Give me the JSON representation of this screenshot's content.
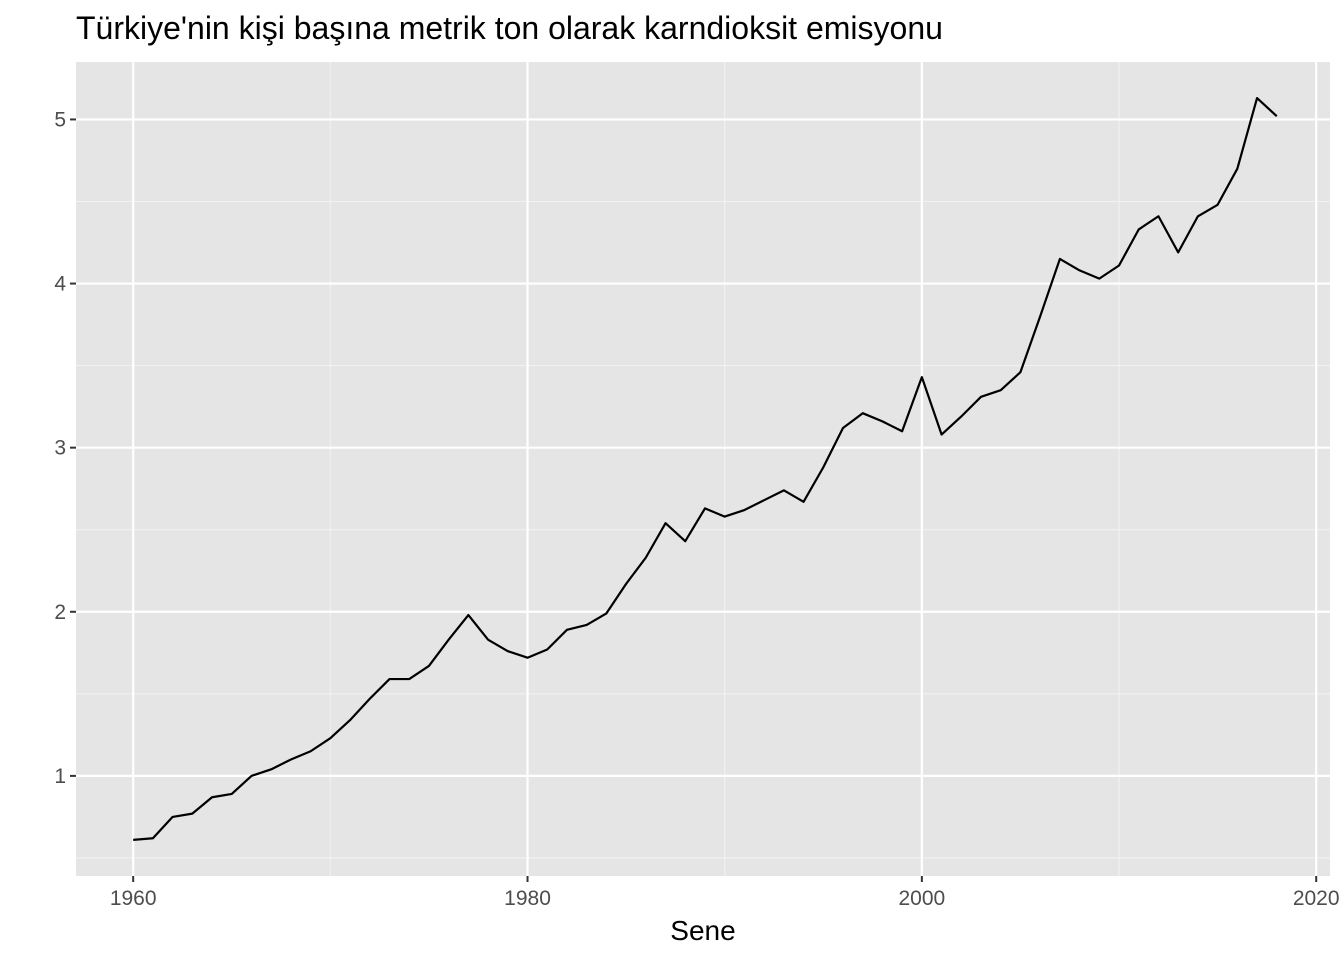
{
  "chart_data": {
    "type": "line",
    "title": "Türkiye'nin kişi başına metrik ton olarak karndioksit emisyonu",
    "xlabel": "Sene",
    "ylabel": "",
    "xlim": [
      1957.1,
      2020.7
    ],
    "ylim": [
      0.39,
      5.35
    ],
    "x_ticks": [
      1960,
      1980,
      2000,
      2020
    ],
    "x_tick_labels": [
      "1960",
      "1980",
      "2000",
      "2020"
    ],
    "y_ticks": [
      1,
      2,
      3,
      4,
      5
    ],
    "y_tick_labels": [
      "1",
      "2",
      "3",
      "4",
      "5"
    ],
    "grid": true,
    "background": "#e5e5e5",
    "grid_major_color": "#ffffff",
    "line_color": "#000000",
    "series": [
      {
        "x": [
          1960,
          1961,
          1962,
          1963,
          1964,
          1965,
          1966,
          1967,
          1968,
          1969,
          1970,
          1971,
          1972,
          1973,
          1974,
          1975,
          1976,
          1977,
          1978,
          1979,
          1980,
          1981,
          1982,
          1983,
          1984,
          1985,
          1986,
          1987,
          1988,
          1989,
          1990,
          1991,
          1992,
          1993,
          1994,
          1995,
          1996,
          1997,
          1998,
          1999,
          2000,
          2001,
          2002,
          2003,
          2004,
          2005,
          2006,
          2007,
          2008,
          2009,
          2010,
          2011,
          2012,
          2013,
          2014,
          2015,
          2016,
          2017,
          2018
        ],
        "values": [
          0.61,
          0.62,
          0.75,
          0.77,
          0.87,
          0.89,
          1.0,
          1.04,
          1.1,
          1.15,
          1.23,
          1.34,
          1.47,
          1.59,
          1.59,
          1.67,
          1.83,
          1.98,
          1.83,
          1.76,
          1.72,
          1.77,
          1.89,
          1.92,
          1.99,
          2.17,
          2.33,
          2.54,
          2.43,
          2.63,
          2.58,
          2.62,
          2.68,
          2.74,
          2.67,
          2.88,
          3.12,
          3.21,
          3.16,
          3.1,
          3.43,
          3.08,
          3.19,
          3.31,
          3.35,
          3.46,
          3.8,
          4.15,
          4.08,
          4.03,
          4.11,
          4.33,
          4.41,
          4.19,
          4.41,
          4.48,
          4.7,
          5.13,
          5.02
        ]
      }
    ]
  }
}
